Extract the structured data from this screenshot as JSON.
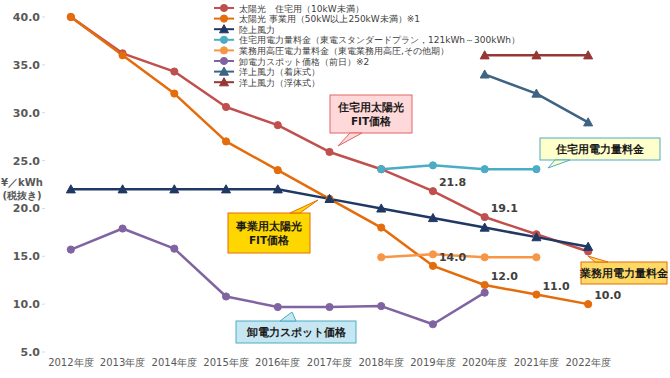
{
  "chart_data": {
    "type": "line",
    "y_label": "¥／kWh\n(税抜き)",
    "categories": [
      "2012年度",
      "2013年度",
      "2014年度",
      "2015年度",
      "2016年度",
      "2017年度",
      "2018年度",
      "2019年度",
      "2020年度",
      "2021年度",
      "2022年度"
    ],
    "ylim": [
      5,
      40
    ],
    "yticks": [
      {
        "value": 5,
        "label": "5.0"
      },
      {
        "value": 10,
        "label": "10.0"
      },
      {
        "value": 15,
        "label": "15.0"
      },
      {
        "value": 20,
        "label": "20.0"
      },
      {
        "value": 25,
        "label": "25.0"
      },
      {
        "value": 30,
        "label": "30.0"
      },
      {
        "value": 35,
        "label": "35.0"
      },
      {
        "value": 40,
        "label": "40.0"
      }
    ],
    "grid": false,
    "legend": "top",
    "series": [
      {
        "name": "太陽光　住宅用（10kW未満）",
        "color": "#c0504d",
        "marker": "circle",
        "values": [
          40,
          36.2,
          34.3,
          30.6,
          28.7,
          25.9,
          24.1,
          21.8,
          19.1,
          17.3,
          15.5
        ],
        "value_labels": [
          null,
          null,
          null,
          null,
          null,
          null,
          null,
          "21.8",
          "19.1",
          null,
          null
        ]
      },
      {
        "name": "太陽光 事業用（50kW以上250kW未満）※1",
        "color": "#e46c0a",
        "marker": "circle",
        "values": [
          40,
          36,
          32,
          27,
          24,
          21,
          18,
          14,
          12,
          11,
          10
        ],
        "value_labels": [
          null,
          null,
          null,
          null,
          null,
          null,
          null,
          "14.0",
          "12.0",
          "11.0",
          "10.0"
        ]
      },
      {
        "name": "陸上風力",
        "color": "#1f3864",
        "marker": "triangle",
        "values": [
          22,
          22,
          22,
          22,
          22,
          21,
          20,
          19,
          18,
          17,
          16
        ]
      },
      {
        "name": "住宅用電力量料金（東電スタンダードプラン，121kWh～300kWh）",
        "color": "#4bacc6",
        "marker": "circle",
        "values": [
          null,
          null,
          null,
          null,
          null,
          null,
          24.1,
          24.5,
          24.1,
          24.1,
          null
        ]
      },
      {
        "name": "業務用高圧電力量料金（東電業務用高圧,その他期）",
        "color": "#f79646",
        "marker": "circle",
        "values": [
          null,
          null,
          null,
          null,
          null,
          null,
          14.9,
          15.2,
          14.9,
          14.9,
          null
        ]
      },
      {
        "name": "卸電力スポット価格（前日）※2",
        "color": "#8064a2",
        "marker": "circle",
        "values": [
          15.7,
          17.9,
          15.8,
          10.8,
          9.7,
          9.7,
          9.8,
          7.9,
          11.2,
          null,
          null
        ]
      },
      {
        "name": "洋上風力（着床式）",
        "color": "#3e6383",
        "marker": "triangle",
        "values": [
          null,
          null,
          null,
          null,
          null,
          null,
          null,
          null,
          34,
          32,
          29
        ]
      },
      {
        "name": "洋上風力（浮体式）",
        "color": "#953735",
        "marker": "triangle",
        "values": [
          null,
          null,
          null,
          null,
          null,
          null,
          null,
          null,
          36,
          36,
          36
        ]
      }
    ],
    "annotations": [
      "住宅用太陽光\nFIT価格",
      "事業用太陽光\nFIT価格",
      "卸電力スポット価格",
      "住宅用電力量料金",
      "業務用電力量料金"
    ]
  }
}
